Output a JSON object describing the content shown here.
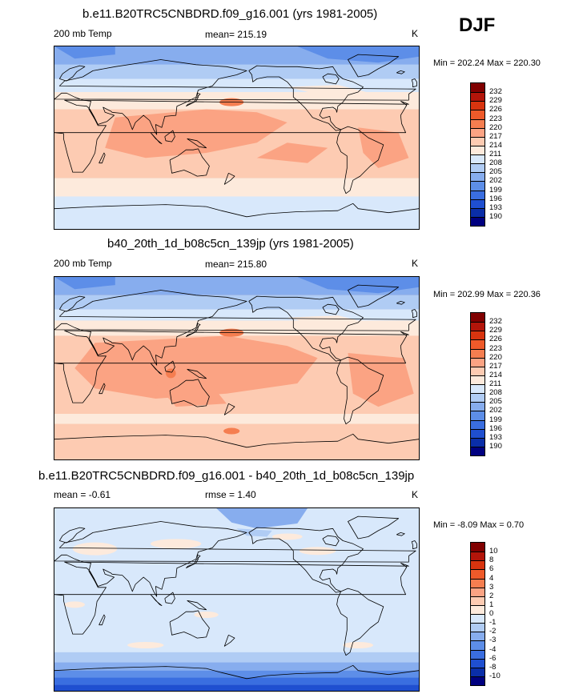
{
  "season": "DJF",
  "panels": [
    {
      "title": "b.e11.B20TRC5CNBDRD.f09_g16.001 (yrs 1981-2005)",
      "left": "200 mb Temp",
      "center": "mean= 215.19",
      "units": "K",
      "minmax": "Min = 202.24 Max = 220.30",
      "colorbar": {
        "labels": [
          "232",
          "229",
          "226",
          "223",
          "220",
          "217",
          "214",
          "211",
          "208",
          "205",
          "202",
          "199",
          "196",
          "193",
          "190"
        ],
        "colors": [
          "#800000",
          "#b3150a",
          "#d8340f",
          "#ee5a2a",
          "#f57e50",
          "#fba383",
          "#fdcbb2",
          "#fdeadc",
          "#d8e8fb",
          "#b0ccf4",
          "#87adee",
          "#5d8ee8",
          "#3a6ee0",
          "#1f4fd0",
          "#0a2ea8",
          "#000080"
        ]
      },
      "map_variant": "base"
    },
    {
      "title": "b40_20th_1d_b08c5cn_139jp (yrs 1981-2005)",
      "left": "200 mb Temp",
      "center": "mean= 215.80",
      "units": "K",
      "minmax": "Min = 202.99 Max = 220.36",
      "colorbar": {
        "labels": [
          "232",
          "229",
          "226",
          "223",
          "220",
          "217",
          "214",
          "211",
          "208",
          "205",
          "202",
          "199",
          "196",
          "193",
          "190"
        ],
        "colors": [
          "#800000",
          "#b3150a",
          "#d8340f",
          "#ee5a2a",
          "#f57e50",
          "#fba383",
          "#fdcbb2",
          "#fdeadc",
          "#d8e8fb",
          "#b0ccf4",
          "#87adee",
          "#5d8ee8",
          "#3a6ee0",
          "#1f4fd0",
          "#0a2ea8",
          "#000080"
        ]
      },
      "map_variant": "warm"
    },
    {
      "title": "b.e11.B20TRC5CNBDRD.f09_g16.001 - b40_20th_1d_b08c5cn_139jp",
      "left": "mean =  -0.61",
      "center": "rmse =   1.40",
      "units": "K",
      "minmax": "Min =  -8.09 Max =   0.70",
      "colorbar": {
        "labels": [
          "10",
          "8",
          "6",
          "4",
          "3",
          "2",
          "1",
          "0",
          "-1",
          "-2",
          "-3",
          "-4",
          "-6",
          "-8",
          "-10"
        ],
        "colors": [
          "#800000",
          "#b3150a",
          "#d8340f",
          "#ee5a2a",
          "#f57e50",
          "#fba383",
          "#fdcbb2",
          "#fdeadc",
          "#d8e8fb",
          "#b0ccf4",
          "#87adee",
          "#5d8ee8",
          "#3a6ee0",
          "#1f4fd0",
          "#0a2ea8",
          "#000080"
        ]
      },
      "map_variant": "diff"
    }
  ]
}
